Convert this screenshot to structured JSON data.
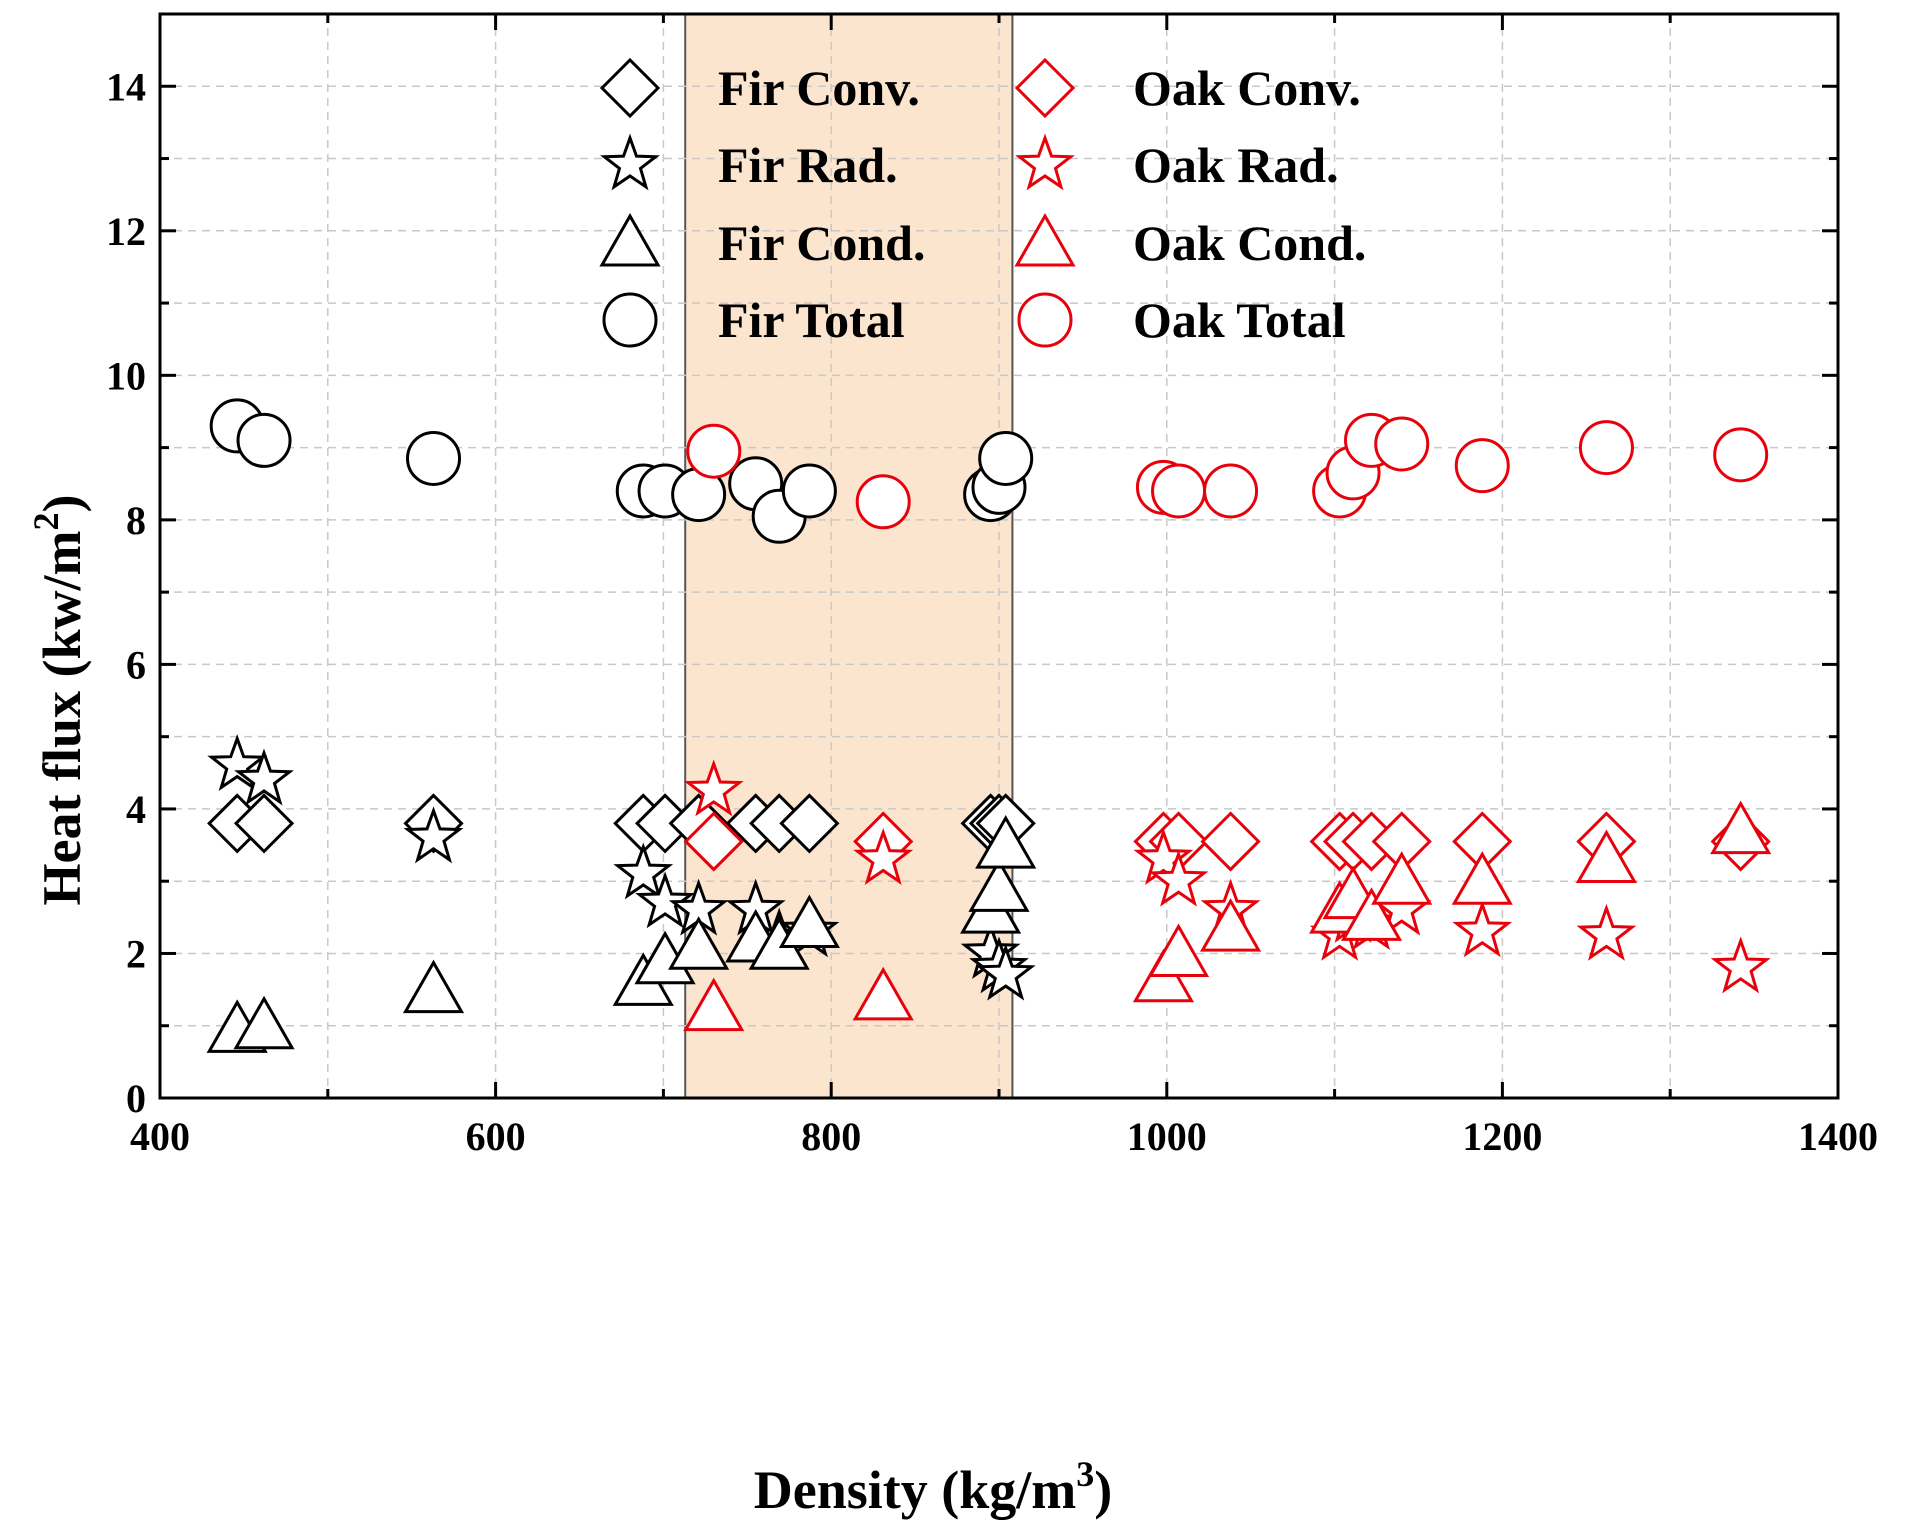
{
  "chart_data": {
    "type": "scatter",
    "xlabel": "Density (kg/m",
    "xlabel_sup": "3",
    "xlabel_end": ")",
    "ylabel": "Heat flux (kw/m",
    "ylabel_sup": "2",
    "ylabel_end": ")",
    "xlim": [
      400,
      1400
    ],
    "ylim": [
      0,
      15
    ],
    "xticks": [
      "400",
      "600",
      "800",
      "1000",
      "1200",
      "1400"
    ],
    "yticks": [
      "0",
      "2",
      "4",
      "6",
      "8",
      "10",
      "12",
      "14"
    ],
    "grid": true,
    "legend_position": "top-center",
    "highlight_band": {
      "x": [
        713,
        908
      ],
      "color": "#fbe5cf"
    },
    "colors": {
      "fir": "#000000",
      "oak": "#e8000b"
    },
    "series": [
      {
        "name": "Fir Conv.",
        "marker": "diamond",
        "color": "#000000",
        "points": [
          [
            446,
            3.8
          ],
          [
            462,
            3.8
          ],
          [
            563,
            3.8
          ],
          [
            688,
            3.8
          ],
          [
            701,
            3.8
          ],
          [
            721,
            3.8
          ],
          [
            755,
            3.8
          ],
          [
            769,
            3.8
          ],
          [
            787,
            3.8
          ],
          [
            895,
            3.8
          ],
          [
            900,
            3.8
          ],
          [
            904,
            3.8
          ]
        ]
      },
      {
        "name": "Fir Rad.",
        "marker": "star",
        "color": "#000000",
        "points": [
          [
            446,
            4.6
          ],
          [
            462,
            4.4
          ],
          [
            563,
            3.6
          ],
          [
            688,
            3.1
          ],
          [
            701,
            2.7
          ],
          [
            721,
            2.6
          ],
          [
            755,
            2.6
          ],
          [
            769,
            2.2
          ],
          [
            787,
            2.3
          ],
          [
            895,
            2.0
          ],
          [
            900,
            1.8
          ],
          [
            904,
            1.7
          ]
        ]
      },
      {
        "name": "Fir Cond.",
        "marker": "triangle",
        "color": "#000000",
        "points": [
          [
            446,
            0.95
          ],
          [
            462,
            1.0
          ],
          [
            563,
            1.5
          ],
          [
            688,
            1.6
          ],
          [
            701,
            1.9
          ],
          [
            721,
            2.1
          ],
          [
            755,
            2.2
          ],
          [
            769,
            2.1
          ],
          [
            787,
            2.4
          ],
          [
            895,
            2.6
          ],
          [
            900,
            2.9
          ],
          [
            904,
            3.5
          ]
        ]
      },
      {
        "name": "Fir Total",
        "marker": "circle",
        "color": "#000000",
        "points": [
          [
            446,
            9.3
          ],
          [
            462,
            9.1
          ],
          [
            563,
            8.85
          ],
          [
            688,
            8.4
          ],
          [
            701,
            8.4
          ],
          [
            721,
            8.35
          ],
          [
            755,
            8.5
          ],
          [
            769,
            8.05
          ],
          [
            787,
            8.4
          ],
          [
            895,
            8.35
          ],
          [
            900,
            8.45
          ],
          [
            904,
            8.85
          ]
        ]
      },
      {
        "name": "Oak Conv.",
        "marker": "diamond",
        "color": "#e8000b",
        "points": [
          [
            730,
            3.55
          ],
          [
            831,
            3.55
          ],
          [
            998,
            3.55
          ],
          [
            1007,
            3.55
          ],
          [
            1038,
            3.55
          ],
          [
            1103,
            3.55
          ],
          [
            1111,
            3.55
          ],
          [
            1122,
            3.55
          ],
          [
            1140,
            3.55
          ],
          [
            1188,
            3.55
          ],
          [
            1262,
            3.55
          ],
          [
            1342,
            3.55
          ]
        ]
      },
      {
        "name": "Oak Rad.",
        "marker": "star",
        "color": "#e8000b",
        "points": [
          [
            730,
            4.25
          ],
          [
            831,
            3.3
          ],
          [
            998,
            3.3
          ],
          [
            1007,
            3.0
          ],
          [
            1038,
            2.6
          ],
          [
            1103,
            2.25
          ],
          [
            1111,
            2.5
          ],
          [
            1122,
            2.4
          ],
          [
            1140,
            2.6
          ],
          [
            1188,
            2.3
          ],
          [
            1262,
            2.25
          ],
          [
            1342,
            1.8
          ]
        ]
      },
      {
        "name": "Oak Cond.",
        "marker": "triangle",
        "color": "#e8000b",
        "points": [
          [
            730,
            1.25
          ],
          [
            831,
            1.4
          ],
          [
            998,
            1.65
          ],
          [
            1007,
            2.0
          ],
          [
            1038,
            2.35
          ],
          [
            1103,
            2.6
          ],
          [
            1111,
            2.8
          ],
          [
            1122,
            2.5
          ],
          [
            1140,
            3.0
          ],
          [
            1188,
            3.0
          ],
          [
            1262,
            3.3
          ],
          [
            1342,
            3.7
          ]
        ]
      },
      {
        "name": "Oak Total",
        "marker": "circle",
        "color": "#e8000b",
        "points": [
          [
            730,
            8.95
          ],
          [
            831,
            8.25
          ],
          [
            998,
            8.45
          ],
          [
            1007,
            8.4
          ],
          [
            1038,
            8.4
          ],
          [
            1103,
            8.4
          ],
          [
            1111,
            8.65
          ],
          [
            1122,
            9.1
          ],
          [
            1140,
            9.05
          ],
          [
            1188,
            8.75
          ],
          [
            1262,
            9.0
          ],
          [
            1342,
            8.9
          ]
        ]
      }
    ]
  }
}
